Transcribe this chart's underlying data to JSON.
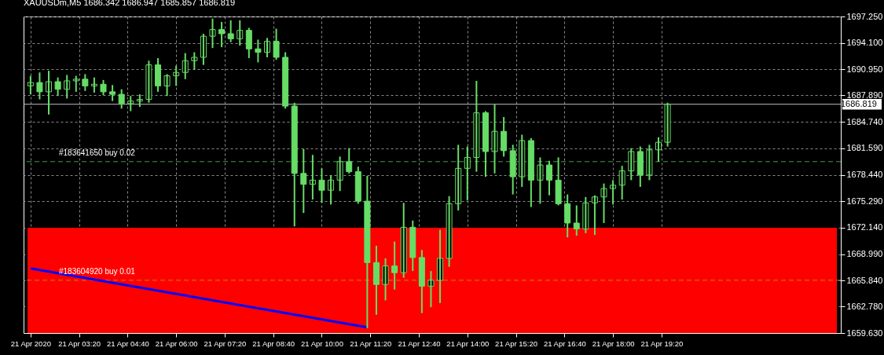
{
  "chart_data": {
    "type": "candlestick",
    "title": "XAUUSDm,M5  1686.342 1686.947 1685.857 1686.819",
    "x": [
      "2020-04-21T02:00",
      "2020-04-21T02:15",
      "2020-04-21T02:30",
      "2020-04-21T02:45",
      "2020-04-21T03:00",
      "2020-04-21T03:15",
      "2020-04-21T03:30",
      "2020-04-21T03:45",
      "2020-04-21T04:00",
      "2020-04-21T04:15",
      "2020-04-21T04:30",
      "2020-04-21T04:45",
      "2020-04-21T05:00",
      "2020-04-21T05:15",
      "2020-04-21T05:30",
      "2020-04-21T05:45",
      "2020-04-21T06:00",
      "2020-04-21T06:15",
      "2020-04-21T06:30",
      "2020-04-21T06:45",
      "2020-04-21T07:00",
      "2020-04-21T07:15",
      "2020-04-21T07:30",
      "2020-04-21T07:45",
      "2020-04-21T08:00",
      "2020-04-21T08:15",
      "2020-04-21T08:30",
      "2020-04-21T08:45",
      "2020-04-21T09:00",
      "2020-04-21T09:15",
      "2020-04-21T09:30",
      "2020-04-21T09:45",
      "2020-04-21T10:00",
      "2020-04-21T10:15",
      "2020-04-21T10:30",
      "2020-04-21T10:45",
      "2020-04-21T11:00",
      "2020-04-21T11:15",
      "2020-04-21T11:30",
      "2020-04-21T11:45",
      "2020-04-21T12:00",
      "2020-04-21T12:15",
      "2020-04-21T12:30",
      "2020-04-21T12:45",
      "2020-04-21T13:00",
      "2020-04-21T13:15",
      "2020-04-21T13:30",
      "2020-04-21T13:45",
      "2020-04-21T14:00",
      "2020-04-21T14:15",
      "2020-04-21T14:30",
      "2020-04-21T14:45",
      "2020-04-21T15:00",
      "2020-04-21T15:15",
      "2020-04-21T15:30",
      "2020-04-21T15:45",
      "2020-04-21T16:00",
      "2020-04-21T16:15",
      "2020-04-21T16:30",
      "2020-04-21T16:45",
      "2020-04-21T17:00",
      "2020-04-21T17:15",
      "2020-04-21T17:30",
      "2020-04-21T17:45",
      "2020-04-21T18:00",
      "2020-04-21T18:15",
      "2020-04-21T18:30",
      "2020-04-21T18:45",
      "2020-04-21T19:00",
      "2020-04-21T19:15",
      "2020-04-21T19:30"
    ],
    "ohlc": [
      [
        1689.0,
        1690.2,
        1688.0,
        1689.4
      ],
      [
        1689.4,
        1690.6,
        1687.4,
        1688.3
      ],
      [
        1688.3,
        1690.8,
        1685.6,
        1689.5
      ],
      [
        1689.5,
        1690.0,
        1687.8,
        1688.6
      ],
      [
        1688.6,
        1690.3,
        1687.5,
        1689.6
      ],
      [
        1689.6,
        1690.2,
        1688.3,
        1689.8
      ],
      [
        1689.8,
        1690.4,
        1688.4,
        1689.0
      ],
      [
        1689.0,
        1690.0,
        1688.2,
        1689.2
      ],
      [
        1689.2,
        1689.7,
        1687.9,
        1688.3
      ],
      [
        1688.3,
        1689.1,
        1687.2,
        1688.0
      ],
      [
        1688.0,
        1688.6,
        1686.3,
        1686.9
      ],
      [
        1686.9,
        1687.8,
        1686.0,
        1687.2
      ],
      [
        1687.2,
        1688.0,
        1686.5,
        1687.4
      ],
      [
        1687.4,
        1692.0,
        1687.0,
        1691.5
      ],
      [
        1691.5,
        1692.3,
        1688.3,
        1689.0
      ],
      [
        1689.0,
        1690.4,
        1687.8,
        1690.2
      ],
      [
        1690.2,
        1691.4,
        1689.0,
        1690.6
      ],
      [
        1690.6,
        1692.9,
        1689.8,
        1692.0
      ],
      [
        1692.0,
        1693.0,
        1690.9,
        1692.4
      ],
      [
        1692.4,
        1695.2,
        1691.5,
        1694.9
      ],
      [
        1694.9,
        1697.0,
        1693.5,
        1695.7
      ],
      [
        1695.7,
        1696.6,
        1693.6,
        1695.2
      ],
      [
        1695.2,
        1696.8,
        1694.2,
        1694.6
      ],
      [
        1694.6,
        1696.8,
        1693.8,
        1695.6
      ],
      [
        1695.6,
        1695.9,
        1692.3,
        1693.4
      ],
      [
        1693.4,
        1694.5,
        1691.8,
        1693.0
      ],
      [
        1693.0,
        1694.7,
        1692.4,
        1694.3
      ],
      [
        1694.3,
        1695.8,
        1692.1,
        1692.4
      ],
      [
        1692.4,
        1693.0,
        1686.3,
        1686.6
      ],
      [
        1686.6,
        1687.0,
        1672.3,
        1678.6
      ],
      [
        1678.6,
        1681.5,
        1673.9,
        1677.3
      ],
      [
        1677.3,
        1680.8,
        1675.5,
        1677.8
      ],
      [
        1677.8,
        1679.2,
        1675.1,
        1676.6
      ],
      [
        1676.6,
        1678.4,
        1674.9,
        1677.8
      ],
      [
        1677.8,
        1680.6,
        1676.5,
        1680.0
      ],
      [
        1680.0,
        1681.6,
        1678.6,
        1678.8
      ],
      [
        1678.8,
        1679.4,
        1675.0,
        1675.3
      ],
      [
        1675.3,
        1678.3,
        1660.2,
        1668.0
      ],
      [
        1668.0,
        1670.0,
        1661.8,
        1665.4
      ],
      [
        1665.4,
        1668.5,
        1663.5,
        1667.6
      ],
      [
        1667.6,
        1670.5,
        1664.8,
        1666.8
      ],
      [
        1666.8,
        1675.1,
        1666.2,
        1672.2
      ],
      [
        1672.2,
        1673.0,
        1667.0,
        1668.6
      ],
      [
        1668.6,
        1669.5,
        1662.0,
        1665.2
      ],
      [
        1665.2,
        1667.0,
        1662.7,
        1665.9
      ],
      [
        1665.9,
        1671.9,
        1663.2,
        1668.5
      ],
      [
        1668.5,
        1675.9,
        1667.5,
        1675.0
      ],
      [
        1675.0,
        1682.0,
        1674.2,
        1679.2
      ],
      [
        1679.2,
        1681.8,
        1675.4,
        1680.5
      ],
      [
        1680.5,
        1689.6,
        1678.8,
        1685.8
      ],
      [
        1685.8,
        1686.0,
        1678.2,
        1681.2
      ],
      [
        1681.2,
        1686.8,
        1678.6,
        1683.6
      ],
      [
        1683.6,
        1685.3,
        1680.6,
        1681.3
      ],
      [
        1681.3,
        1682.0,
        1676.1,
        1678.2
      ],
      [
        1678.2,
        1683.2,
        1677.0,
        1682.5
      ],
      [
        1682.5,
        1682.8,
        1674.6,
        1677.8
      ],
      [
        1677.8,
        1680.5,
        1675.0,
        1679.6
      ],
      [
        1679.6,
        1680.1,
        1676.0,
        1677.8
      ],
      [
        1677.8,
        1680.5,
        1674.8,
        1675.0
      ],
      [
        1675.0,
        1676.1,
        1671.0,
        1672.7
      ],
      [
        1672.7,
        1674.8,
        1671.2,
        1672.0
      ],
      [
        1672.0,
        1675.8,
        1671.5,
        1675.1
      ],
      [
        1675.1,
        1676.0,
        1671.3,
        1675.8
      ],
      [
        1675.8,
        1677.4,
        1672.7,
        1676.8
      ],
      [
        1676.8,
        1677.8,
        1674.9,
        1677.2
      ],
      [
        1677.2,
        1679.5,
        1675.5,
        1678.9
      ],
      [
        1678.9,
        1681.6,
        1677.8,
        1681.2
      ],
      [
        1681.2,
        1681.8,
        1677.0,
        1678.4
      ],
      [
        1678.4,
        1682.0,
        1677.8,
        1681.4
      ],
      [
        1681.4,
        1682.9,
        1680.0,
        1682.3
      ],
      [
        1682.3,
        1687.0,
        1681.8,
        1686.8
      ]
    ],
    "color": "#66dd66",
    "series": [
      {
        "type": "line",
        "color": "#0000ff",
        "x": [
          "2020-04-21T02:00",
          "2020-04-21T11:15"
        ],
        "values": [
          1667.3,
          1660.3
        ]
      }
    ],
    "xlim": [
      "2020-04-21T01:55",
      "2020-04-22T00:09"
    ],
    "xticks": [
      {
        "value": "2020-04-21T02:00",
        "label": "21 Apr 2020"
      },
      {
        "value": "2020-04-21T03:20",
        "label": "21 Apr 03:20"
      },
      {
        "value": "2020-04-21T04:40",
        "label": "21 Apr 04:40"
      },
      {
        "value": "2020-04-21T06:00",
        "label": "21 Apr 06:00"
      },
      {
        "value": "2020-04-21T07:20",
        "label": "21 Apr 07:20"
      },
      {
        "value": "2020-04-21T08:40",
        "label": "21 Apr 08:40"
      },
      {
        "value": "2020-04-21T10:00",
        "label": "21 Apr 10:00"
      },
      {
        "value": "2020-04-21T11:20",
        "label": "21 Apr 11:20"
      },
      {
        "value": "2020-04-21T12:40",
        "label": "21 Apr 12:40"
      },
      {
        "value": "2020-04-21T14:00",
        "label": "21 Apr 14:00"
      },
      {
        "value": "2020-04-21T15:20",
        "label": "21 Apr 15:20"
      },
      {
        "value": "2020-04-21T16:40",
        "label": "21 Apr 16:40"
      },
      {
        "value": "2020-04-21T18:00",
        "label": "21 Apr 18:00"
      },
      {
        "value": "2020-04-21T19:20",
        "label": "21 Apr 19:20"
      }
    ],
    "ylim": [
      1659.63,
      1697.25
    ],
    "yticks": [
      {
        "value": 1659.63,
        "label": "1659.630"
      },
      {
        "value": 1662.78,
        "label": "1662.780"
      },
      {
        "value": 1665.84,
        "label": "1665.840"
      },
      {
        "value": 1668.99,
        "label": "1668.990"
      },
      {
        "value": 1672.14,
        "label": "1672.140"
      },
      {
        "value": 1675.29,
        "label": "1675.290"
      },
      {
        "value": 1678.44,
        "label": "1678.440"
      },
      {
        "value": 1681.59,
        "label": "1681.590"
      },
      {
        "value": 1684.74,
        "label": "1684.740"
      },
      {
        "value": 1687.89,
        "label": "1687.890"
      },
      {
        "value": 1690.95,
        "label": "1690.950"
      },
      {
        "value": 1694.1,
        "label": "1694.100"
      },
      {
        "value": 1697.25,
        "label": "1697.250"
      }
    ],
    "bands": [
      {
        "axis": "y",
        "from": 1659.63,
        "to": 1672.14,
        "color": "#ff0000"
      }
    ],
    "ref_lines": [
      {
        "axis": "y",
        "value": 1680.0,
        "label": "#183641650 buy 0.02",
        "color": "#4a9a4a",
        "line_style": "dashed"
      },
      {
        "axis": "y",
        "value": 1665.9,
        "label": "#183604920 buy 0.01",
        "color": "#c08020",
        "line_style": "dashed"
      },
      {
        "axis": "y",
        "value": 1686.819,
        "label": "1686.819",
        "color": "#c0c0c0",
        "line_style": "solid"
      }
    ],
    "grid": true
  }
}
